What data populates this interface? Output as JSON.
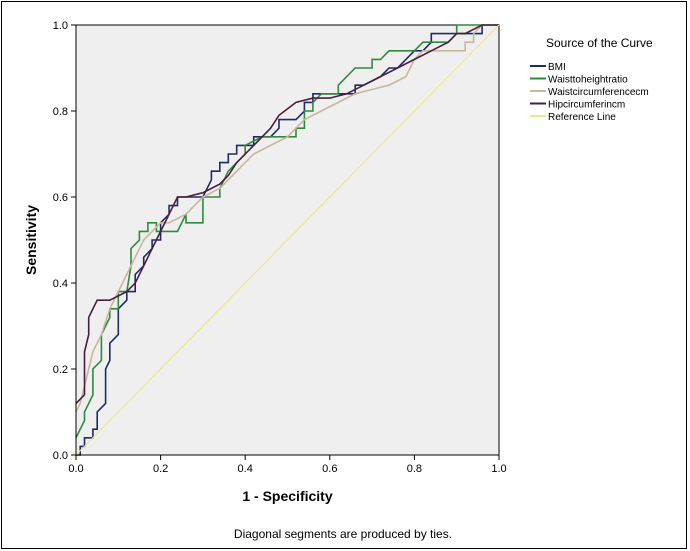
{
  "chart_data": {
    "type": "line",
    "xlabel": "1 - Specificity",
    "ylabel": "Sensitivity",
    "xlim": [
      0,
      1
    ],
    "ylim": [
      0,
      1
    ],
    "x_ticks": [
      "0.0",
      "0.2",
      "0.4",
      "0.6",
      "0.8",
      "1.0"
    ],
    "y_ticks": [
      "0.0",
      "0.2",
      "0.4",
      "0.6",
      "0.8",
      "1.0"
    ],
    "grid": false,
    "background": "#efefef",
    "legend_title": "Source of the Curve",
    "legend_position": "right",
    "footnote": "Diagonal segments are produced by ties.",
    "series": [
      {
        "name": "BMI",
        "color": "#1f2a6b",
        "x": [
          0,
          0.01,
          0.01,
          0.02,
          0.02,
          0.04,
          0.04,
          0.05,
          0.05,
          0.07,
          0.07,
          0.08,
          0.08,
          0.1,
          0.1,
          0.12,
          0.12,
          0.14,
          0.14,
          0.16,
          0.16,
          0.18,
          0.18,
          0.2,
          0.2,
          0.22,
          0.22,
          0.24,
          0.24,
          0.3,
          0.32,
          0.32,
          0.34,
          0.34,
          0.36,
          0.36,
          0.38,
          0.38,
          0.4,
          0.42,
          0.42,
          0.46,
          0.48,
          0.48,
          0.52,
          0.54,
          0.54,
          0.56,
          0.56,
          0.58,
          0.6,
          0.62,
          0.64,
          0.66,
          0.66,
          0.68,
          0.72,
          0.74,
          0.76,
          0.78,
          0.8,
          0.82,
          0.84,
          0.84,
          0.86,
          0.86,
          0.88,
          0.9,
          0.92,
          0.92,
          0.96,
          0.96,
          1.0
        ],
        "y": [
          0,
          0,
          0.02,
          0.02,
          0.04,
          0.04,
          0.06,
          0.06,
          0.1,
          0.12,
          0.2,
          0.22,
          0.26,
          0.28,
          0.34,
          0.36,
          0.38,
          0.38,
          0.42,
          0.44,
          0.46,
          0.48,
          0.5,
          0.5,
          0.54,
          0.56,
          0.58,
          0.58,
          0.6,
          0.6,
          0.64,
          0.66,
          0.66,
          0.68,
          0.68,
          0.7,
          0.7,
          0.72,
          0.72,
          0.72,
          0.74,
          0.74,
          0.76,
          0.78,
          0.78,
          0.8,
          0.82,
          0.82,
          0.84,
          0.84,
          0.84,
          0.84,
          0.84,
          0.84,
          0.86,
          0.86,
          0.88,
          0.9,
          0.9,
          0.92,
          0.94,
          0.94,
          0.96,
          0.98,
          0.98,
          0.98,
          0.98,
          0.98,
          0.98,
          0.98,
          0.98,
          1.0,
          1.0
        ]
      },
      {
        "name": "Waisttoheightratio",
        "color": "#2f8a3e",
        "x": [
          0,
          0.01,
          0.01,
          0.02,
          0.02,
          0.04,
          0.04,
          0.06,
          0.06,
          0.08,
          0.08,
          0.1,
          0.1,
          0.12,
          0.13,
          0.13,
          0.15,
          0.15,
          0.17,
          0.17,
          0.19,
          0.19,
          0.24,
          0.26,
          0.26,
          0.3,
          0.3,
          0.34,
          0.34,
          0.36,
          0.38,
          0.4,
          0.4,
          0.44,
          0.48,
          0.5,
          0.52,
          0.52,
          0.54,
          0.54,
          0.56,
          0.56,
          0.58,
          0.62,
          0.62,
          0.64,
          0.66,
          0.7,
          0.7,
          0.72,
          0.74,
          0.74,
          0.76,
          0.78,
          0.8,
          0.82,
          0.84,
          0.86,
          0.88,
          0.9,
          0.9,
          1.0
        ],
        "y": [
          0.04,
          0.06,
          0.06,
          0.08,
          0.1,
          0.14,
          0.2,
          0.22,
          0.28,
          0.32,
          0.34,
          0.34,
          0.38,
          0.38,
          0.44,
          0.48,
          0.5,
          0.52,
          0.52,
          0.54,
          0.54,
          0.52,
          0.52,
          0.56,
          0.54,
          0.54,
          0.6,
          0.6,
          0.62,
          0.66,
          0.68,
          0.7,
          0.72,
          0.74,
          0.74,
          0.74,
          0.74,
          0.76,
          0.76,
          0.8,
          0.8,
          0.82,
          0.84,
          0.84,
          0.86,
          0.88,
          0.9,
          0.9,
          0.92,
          0.92,
          0.94,
          0.94,
          0.94,
          0.94,
          0.94,
          0.96,
          0.96,
          0.96,
          0.96,
          0.98,
          1.0,
          1.0
        ]
      },
      {
        "name": "Waistcircumferencecm",
        "color": "#c9b79c",
        "x": [
          0,
          0.01,
          0.02,
          0.03,
          0.04,
          0.06,
          0.08,
          0.1,
          0.12,
          0.14,
          0.16,
          0.18,
          0.2,
          0.22,
          0.24,
          0.26,
          0.28,
          0.3,
          0.34,
          0.38,
          0.42,
          0.46,
          0.5,
          0.54,
          0.58,
          0.62,
          0.66,
          0.7,
          0.74,
          0.78,
          0.8,
          0.82,
          0.86,
          0.88,
          0.92,
          0.92,
          0.94,
          0.94,
          0.96,
          1.0
        ],
        "y": [
          0.1,
          0.12,
          0.16,
          0.2,
          0.24,
          0.28,
          0.34,
          0.38,
          0.42,
          0.46,
          0.5,
          0.52,
          0.54,
          0.54,
          0.55,
          0.56,
          0.58,
          0.6,
          0.62,
          0.66,
          0.7,
          0.72,
          0.74,
          0.78,
          0.8,
          0.82,
          0.84,
          0.85,
          0.86,
          0.88,
          0.92,
          0.94,
          0.94,
          0.94,
          0.94,
          0.96,
          0.96,
          0.98,
          1.0,
          1.0
        ]
      },
      {
        "name": "Hipcircumferincm",
        "color": "#4a1f3c",
        "x": [
          0,
          0.02,
          0.02,
          0.03,
          0.03,
          0.04,
          0.05,
          0.08,
          0.1,
          0.12,
          0.14,
          0.16,
          0.18,
          0.2,
          0.22,
          0.24,
          0.26,
          0.3,
          0.34,
          0.36,
          0.38,
          0.42,
          0.46,
          0.48,
          0.52,
          0.56,
          0.6,
          0.64,
          0.68,
          0.72,
          0.76,
          0.8,
          0.84,
          0.88,
          0.9,
          0.92,
          0.96,
          1.0
        ],
        "y": [
          0.12,
          0.14,
          0.24,
          0.28,
          0.32,
          0.34,
          0.36,
          0.36,
          0.37,
          0.38,
          0.4,
          0.44,
          0.48,
          0.52,
          0.56,
          0.6,
          0.6,
          0.61,
          0.63,
          0.65,
          0.68,
          0.72,
          0.76,
          0.79,
          0.82,
          0.83,
          0.83,
          0.84,
          0.86,
          0.88,
          0.9,
          0.92,
          0.94,
          0.96,
          0.98,
          0.98,
          1.0,
          1.0
        ]
      },
      {
        "name": "Reference Line",
        "color": "#ede68a",
        "x": [
          0,
          1
        ],
        "y": [
          0,
          1
        ]
      }
    ]
  }
}
